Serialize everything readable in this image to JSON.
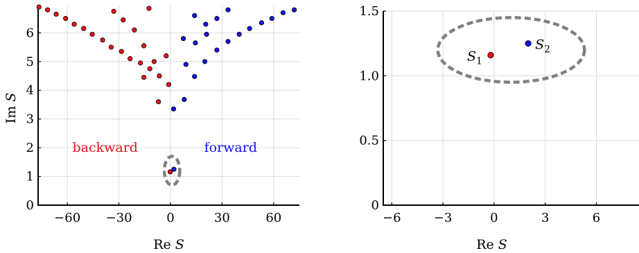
{
  "chart_data": [
    {
      "type": "scatter",
      "xlabel": "Re S",
      "ylabel": "Im S",
      "xlim": [
        -77,
        75
      ],
      "ylim": [
        0,
        6.95
      ],
      "xticks": [
        -60,
        -30,
        0,
        30,
        60
      ],
      "xtick_labels": [
        "−60",
        "−30",
        "0",
        "30",
        "60"
      ],
      "yticks": [
        0,
        1,
        2,
        3,
        4,
        5,
        6
      ],
      "ytick_labels": [
        "0",
        "1",
        "2",
        "3",
        "4",
        "5",
        "6"
      ],
      "grid": true,
      "series": [
        {
          "name": "backward",
          "color": "#e8141c",
          "points": [
            [
              -76.5,
              6.9
            ],
            [
              -71.5,
              6.8
            ],
            [
              -66.5,
              6.65
            ],
            [
              -61,
              6.5
            ],
            [
              -56,
              6.3
            ],
            [
              -50.5,
              6.15
            ],
            [
              -45.5,
              5.95
            ],
            [
              -39.5,
              5.75
            ],
            [
              -34.5,
              5.5
            ],
            [
              -28.5,
              5.35
            ],
            [
              -23.5,
              5.1
            ],
            [
              -17.5,
              4.95
            ],
            [
              -12,
              4.75
            ],
            [
              -6.5,
              4.5
            ],
            [
              -1,
              4.2
            ],
            [
              -33,
              6.75
            ],
            [
              -27.5,
              6.45
            ],
            [
              -21,
              6.1
            ],
            [
              -15.5,
              5.55
            ],
            [
              -9.5,
              5.0
            ],
            [
              -12.5,
              6.85
            ],
            [
              -15.5,
              4.45
            ],
            [
              -2.5,
              5.2
            ],
            [
              -7,
              3.6
            ],
            [
              -0.2,
              1.16
            ]
          ]
        },
        {
          "name": "forward",
          "color": "#1414e8",
          "points": [
            [
              1.8,
              3.35
            ],
            [
              8,
              3.68
            ],
            [
              14,
              4.48
            ],
            [
              9,
              4.9
            ],
            [
              20,
              5.0
            ],
            [
              27,
              5.4
            ],
            [
              14.5,
              5.65
            ],
            [
              21,
              5.95
            ],
            [
              7.5,
              5.8
            ],
            [
              27,
              6.5
            ],
            [
              20.5,
              6.3
            ],
            [
              14,
              6.6
            ],
            [
              33.5,
              6.8
            ],
            [
              33.5,
              5.7
            ],
            [
              40,
              5.95
            ],
            [
              46,
              6.15
            ],
            [
              53,
              6.35
            ],
            [
              59,
              6.5
            ],
            [
              65.5,
              6.7
            ],
            [
              72,
              6.8
            ],
            [
              2,
              1.25
            ]
          ]
        }
      ],
      "annotations": [
        {
          "text": "backward",
          "x": -38,
          "y": 2.0,
          "color": "#e8141c"
        },
        {
          "text": "forward",
          "x": 35,
          "y": 2.0,
          "color": "#1414e8"
        }
      ],
      "highlight_ellipse": {
        "cx": 0.9,
        "cy": 1.2,
        "rx": 4.5,
        "ry": 0.5,
        "color": "#808080"
      }
    },
    {
      "type": "scatter",
      "xlabel": "Re S",
      "ylabel": "",
      "xlim": [
        -6.5,
        8.5
      ],
      "ylim": [
        0,
        1.5
      ],
      "xticks": [
        -6,
        -3,
        0,
        3,
        6
      ],
      "xtick_labels": [
        "−6",
        "−3",
        "0",
        "3",
        "6"
      ],
      "yticks": [
        0,
        0.5,
        1.0,
        1.5
      ],
      "ytick_labels": [
        "0",
        "0.5",
        "1.0",
        "1.5"
      ],
      "grid": true,
      "series": [
        {
          "name": "S1",
          "color": "#e8141c",
          "points": [
            [
              -0.2,
              1.16
            ]
          ]
        },
        {
          "name": "S2",
          "color": "#1414e8",
          "points": [
            [
              2.0,
              1.25
            ]
          ]
        }
      ],
      "point_labels": [
        {
          "base": "S",
          "sub": "1",
          "x": -0.2,
          "y": 1.16,
          "side": "left"
        },
        {
          "base": "S",
          "sub": "2",
          "x": 2.0,
          "y": 1.25,
          "side": "right"
        }
      ],
      "highlight_ellipse": {
        "cx": 1.0,
        "cy": 1.2,
        "rx": 4.3,
        "ry": 0.25,
        "color": "#808080"
      }
    }
  ]
}
